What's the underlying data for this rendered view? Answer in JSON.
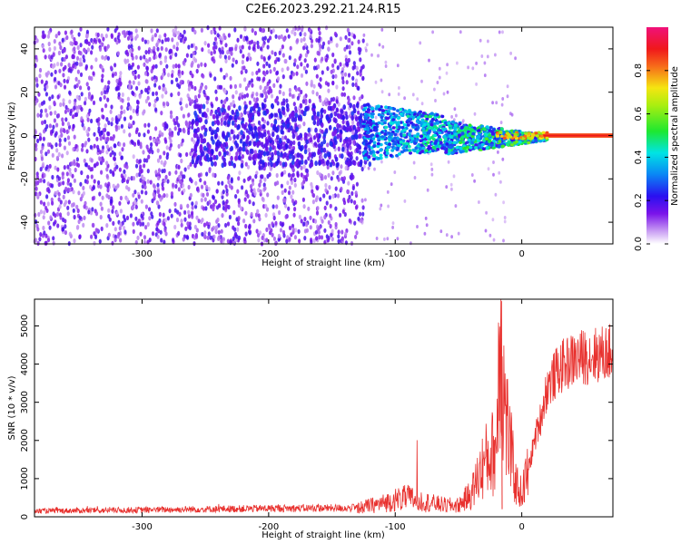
{
  "title": "C2E6.2023.292.21.24.R15",
  "chart_data": [
    {
      "type": "heatmap",
      "xlabel": "Height of straight line (km)",
      "ylabel": "Frequency (Hz)",
      "xlim": [
        -385,
        72
      ],
      "ylim": [
        -50,
        50
      ],
      "xticks": [
        -300,
        -200,
        -100,
        0
      ],
      "yticks": [
        -40,
        -20,
        0,
        20,
        40
      ],
      "colorbar": {
        "label": "Normalized spectral amplitude",
        "range": [
          0,
          1
        ],
        "ticks": [
          0.0,
          0.2,
          0.4,
          0.6,
          0.8
        ],
        "colormap": "rainbow (white-violet-blue-cyan-green-yellow-red-magenta)"
      },
      "regions": [
        {
          "x": [
            -385,
            -125
          ],
          "freq_spread": [
            -50,
            50
          ],
          "amplitude": "low (0.05-0.2)"
        },
        {
          "x": [
            -125,
            -20
          ],
          "freq_spread": [
            -10,
            10
          ],
          "amplitude": "medium (0.2-0.5)"
        },
        {
          "x": [
            -20,
            72
          ],
          "freq_spread": [
            -1,
            1
          ],
          "amplitude": "high (0.8-1.0)"
        }
      ],
      "grid": false
    },
    {
      "type": "line",
      "xlabel": "Height of straight line (km)",
      "ylabel": "SNR (10 * v/v)",
      "xlim": [
        -385,
        72
      ],
      "ylim": [
        0,
        5700
      ],
      "xticks": [
        -300,
        -200,
        -100,
        0
      ],
      "yticks": [
        0,
        1000,
        2000,
        3000,
        4000,
        5000
      ],
      "color": "#e8312e",
      "series": [
        {
          "x": [
            -385,
            -300,
            -200,
            -130,
            -110,
            -100,
            -90,
            -80,
            -70,
            -60,
            -50,
            -40,
            -35,
            -30,
            -25,
            -20,
            -17,
            -15,
            -12,
            -10,
            -5,
            0,
            5,
            10,
            15,
            20,
            30,
            40,
            50,
            60,
            72
          ],
          "values": [
            150,
            180,
            220,
            230,
            350,
            450,
            500,
            420,
            350,
            300,
            300,
            600,
            1000,
            1400,
            1600,
            1800,
            5600,
            3500,
            2500,
            2000,
            900,
            600,
            1200,
            2000,
            2600,
            3400,
            3900,
            4100,
            4200,
            4250,
            4300
          ]
        }
      ],
      "grid": false
    }
  ]
}
